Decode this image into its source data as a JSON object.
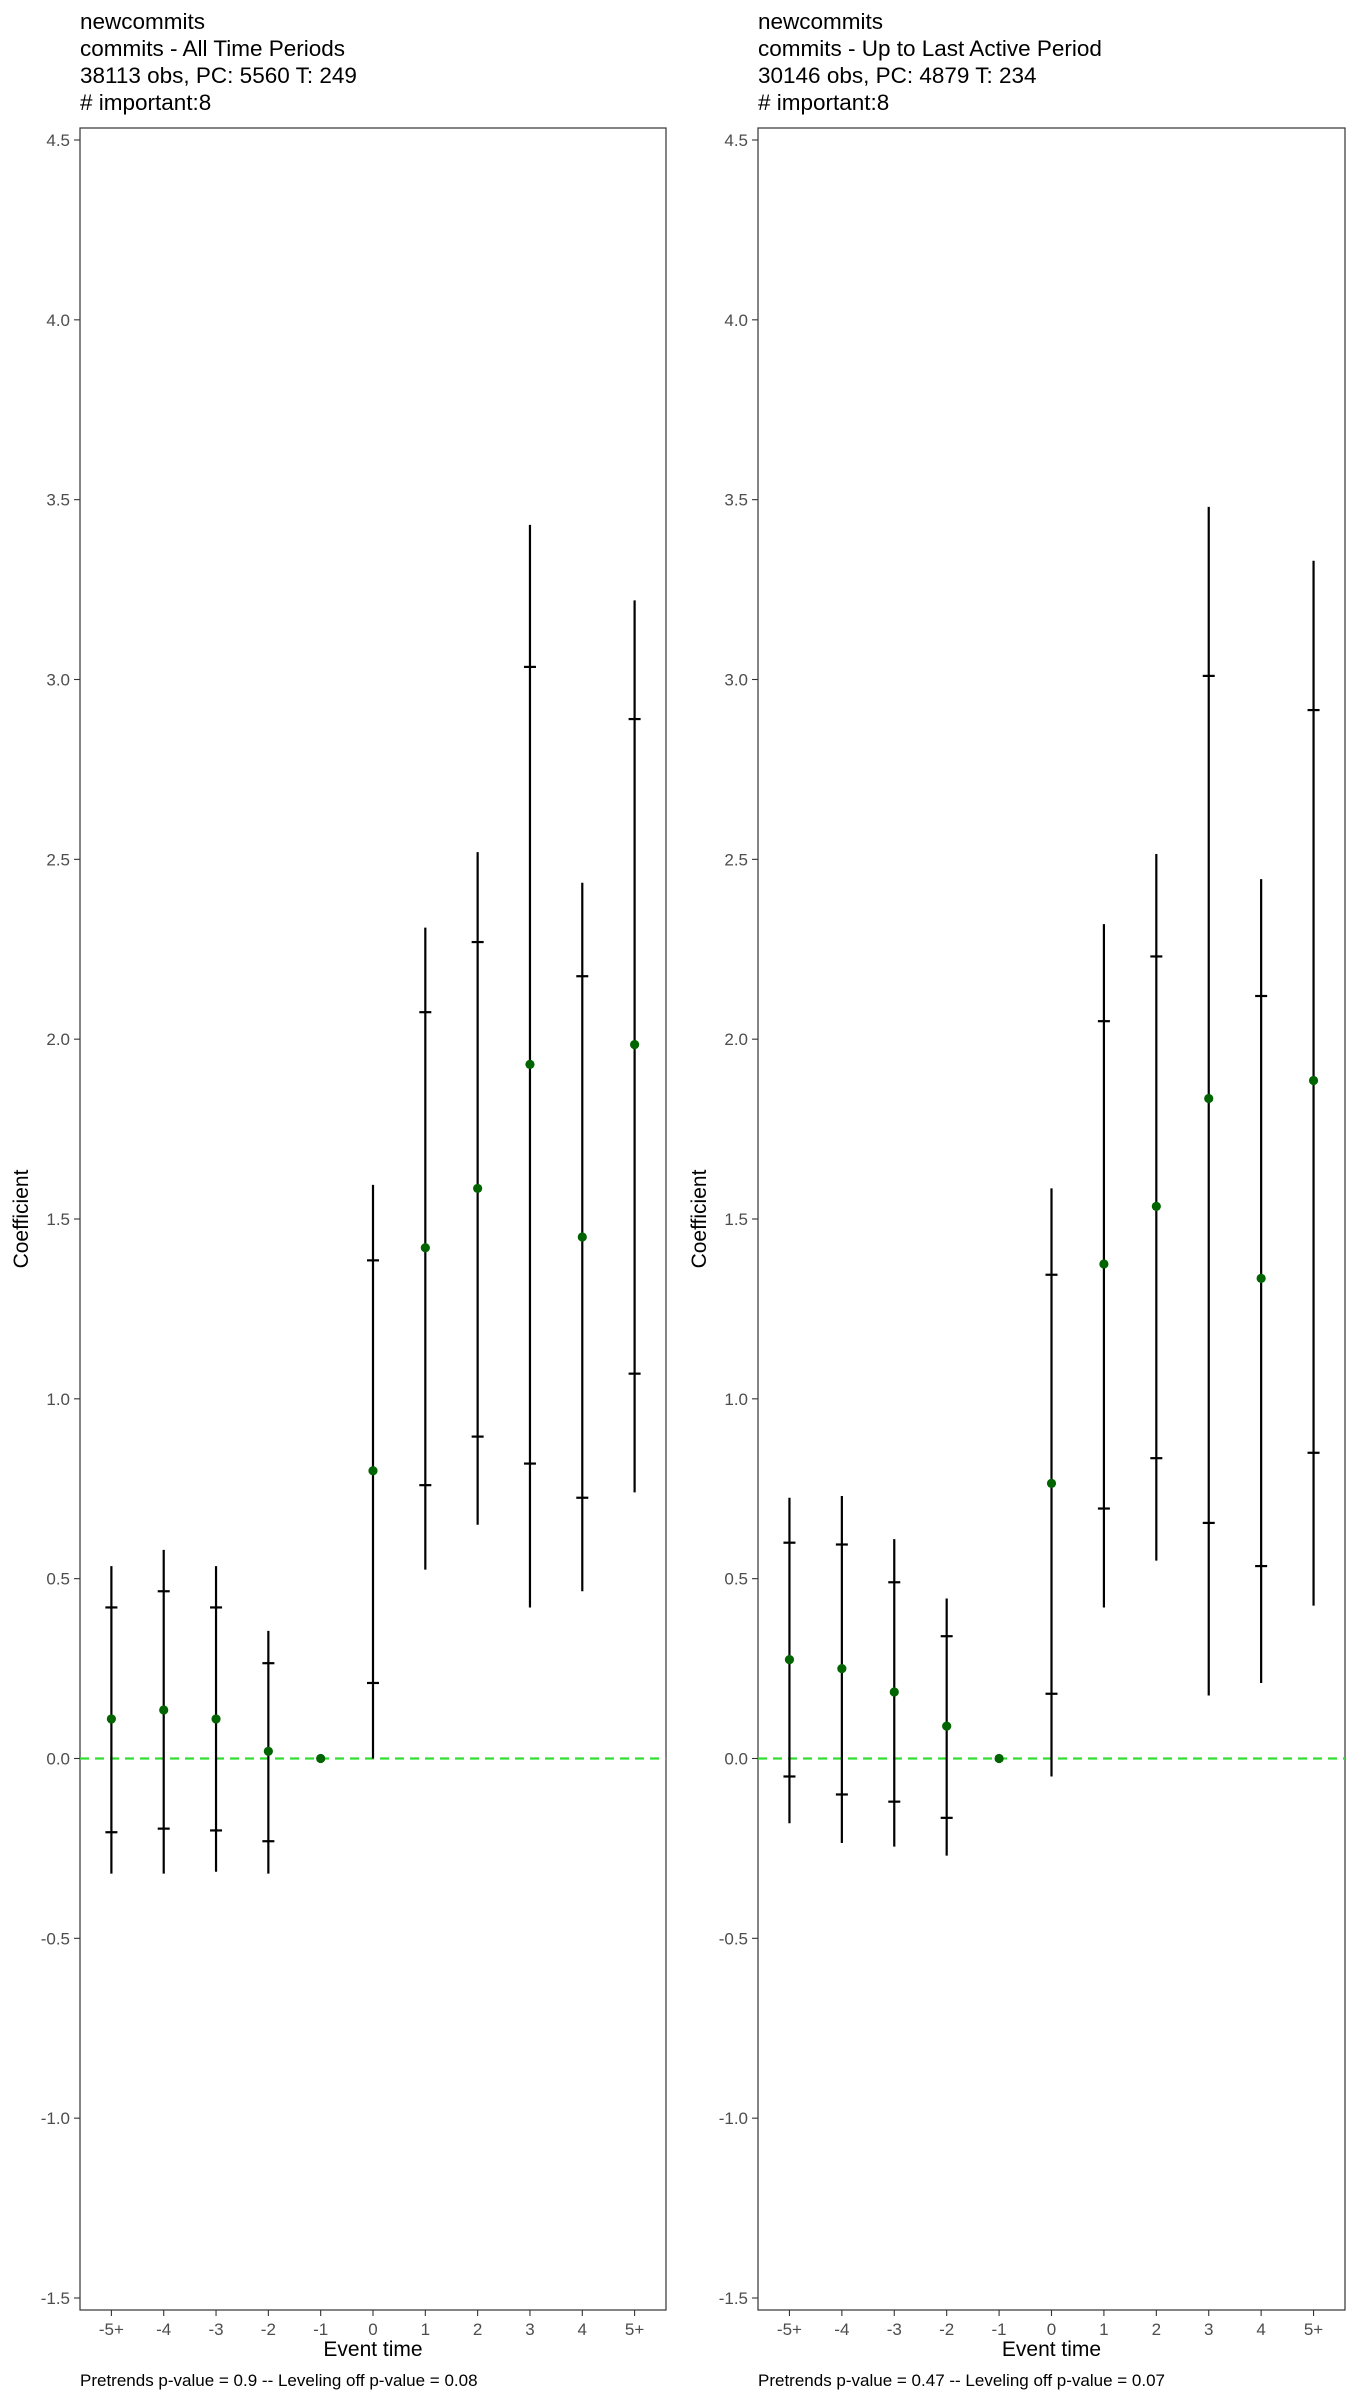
{
  "chart_data": [
    {
      "type": "scatter",
      "title_lines": [
        " newcommits",
        "commits - All Time Periods",
        "38113 obs, PC: 5560 T: 249",
        "# important:8"
      ],
      "xlabel": "Event time",
      "ylabel": "Coefficient",
      "caption": "Pretrends p-value = 0.9 -- Leveling off p-value = 0.08",
      "categories": [
        "-5+",
        "-4",
        "-3",
        "-2",
        "-1",
        "0",
        "1",
        "2",
        "3",
        "4",
        "5+"
      ],
      "y_ticks": [
        "-1.5",
        "-1.0",
        "-0.5",
        "0.0",
        "0.5",
        "1.0",
        "1.5",
        "2.0",
        "2.5",
        "3.0",
        "3.5",
        "4.0",
        "4.5"
      ],
      "ylim": [
        -1.5,
        4.5
      ],
      "reference_line": {
        "y": 0,
        "style": "dashed"
      },
      "series": [
        {
          "estimate": [
            0.11,
            0.135,
            0.11,
            0.02,
            0.0,
            0.8,
            1.42,
            1.585,
            1.93,
            1.45,
            1.985
          ],
          "ci_low": [
            -0.32,
            -0.32,
            -0.315,
            -0.32,
            0.0,
            0.0,
            0.525,
            0.65,
            0.42,
            0.465,
            0.74
          ],
          "ci_high": [
            0.535,
            0.58,
            0.535,
            0.355,
            0.0,
            1.595,
            2.31,
            2.52,
            3.43,
            2.435,
            3.22
          ],
          "inner_low": [
            -0.205,
            -0.195,
            -0.2,
            -0.23,
            null,
            0.21,
            0.76,
            0.895,
            0.82,
            0.725,
            1.07
          ],
          "inner_high": [
            0.42,
            0.465,
            0.42,
            0.265,
            null,
            1.385,
            2.075,
            2.27,
            3.035,
            2.175,
            2.89
          ]
        }
      ],
      "colors": {
        "point": "#006400",
        "zero_line": "#33dd33",
        "bars": "#000000"
      }
    },
    {
      "type": "scatter",
      "title_lines": [
        " newcommits",
        "commits - Up to Last Active Period",
        "30146 obs, PC: 4879 T: 234",
        "# important:8"
      ],
      "xlabel": "Event time",
      "ylabel": "Coefficient",
      "caption": "Pretrends p-value = 0.47 -- Leveling off p-value = 0.07",
      "categories": [
        "-5+",
        "-4",
        "-3",
        "-2",
        "-1",
        "0",
        "1",
        "2",
        "3",
        "4",
        "5+"
      ],
      "y_ticks": [
        "-1.5",
        "-1.0",
        "-0.5",
        "0.0",
        "0.5",
        "1.0",
        "1.5",
        "2.0",
        "2.5",
        "3.0",
        "3.5",
        "4.0",
        "4.5"
      ],
      "ylim": [
        -1.5,
        4.5
      ],
      "reference_line": {
        "y": 0,
        "style": "dashed"
      },
      "series": [
        {
          "estimate": [
            0.275,
            0.25,
            0.185,
            0.09,
            0.0,
            0.765,
            1.375,
            1.535,
            1.835,
            1.335,
            1.885
          ],
          "ci_low": [
            -0.18,
            -0.235,
            -0.245,
            -0.27,
            0.0,
            -0.05,
            0.42,
            0.55,
            0.175,
            0.21,
            0.425
          ],
          "ci_high": [
            0.725,
            0.73,
            0.61,
            0.445,
            0.0,
            1.585,
            2.32,
            2.515,
            3.48,
            2.445,
            3.33
          ],
          "inner_low": [
            -0.05,
            -0.1,
            -0.12,
            -0.165,
            null,
            0.18,
            0.695,
            0.835,
            0.655,
            0.535,
            0.85
          ],
          "inner_high": [
            0.6,
            0.595,
            0.49,
            0.34,
            null,
            1.345,
            2.05,
            2.23,
            3.01,
            2.12,
            2.915
          ]
        }
      ],
      "colors": {
        "point": "#006400",
        "zero_line": "#33dd33",
        "bars": "#000000"
      }
    }
  ]
}
